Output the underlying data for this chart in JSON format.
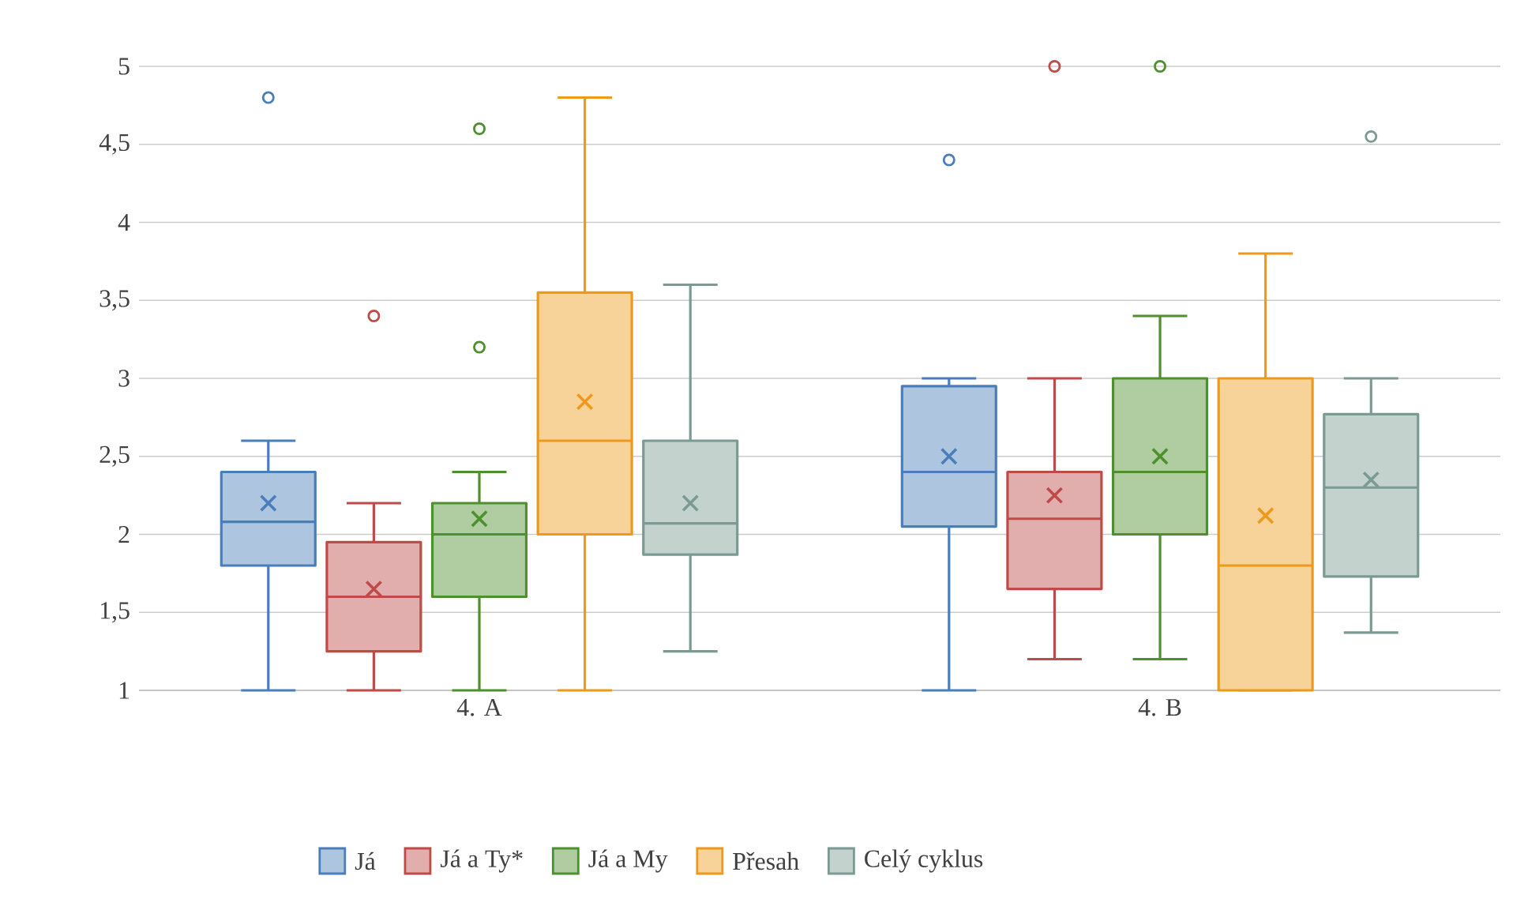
{
  "chart_data": {
    "type": "box",
    "categories": [
      "4. A",
      "4. B"
    ],
    "ylim": [
      1,
      5
    ],
    "yticks": [
      1,
      {
        "value": 1.5,
        "label": "1,5"
      },
      2,
      {
        "value": 2.5,
        "label": "2,5"
      },
      3,
      {
        "value": 3.5,
        "label": "3,5"
      },
      4,
      {
        "value": 4.5,
        "label": "4,5"
      },
      5
    ],
    "grid": "y",
    "legend": "bottom",
    "series": [
      {
        "name": "Já",
        "color": "#4a7ebb",
        "boxes": [
          {
            "low": 1,
            "q1": 1.8,
            "median": 2.08,
            "q3": 2.4,
            "high": 2.6,
            "mean": 2.2,
            "outliers": [
              4.8
            ]
          },
          {
            "low": 1,
            "q1": 2.05,
            "median": 2.4,
            "q3": 2.95,
            "high": 3.0,
            "mean": 2.5,
            "outliers": [
              4.4
            ]
          }
        ]
      },
      {
        "name": "Já a Ty*",
        "color": "#be4b48",
        "boxes": [
          {
            "low": 1,
            "q1": 1.25,
            "median": 1.6,
            "q3": 1.95,
            "high": 2.2,
            "mean": 1.65,
            "outliers": [
              3.4
            ]
          },
          {
            "low": 1.2,
            "q1": 1.65,
            "median": 2.1,
            "q3": 2.4,
            "high": 3.0,
            "mean": 2.25,
            "outliers": [
              5
            ]
          }
        ]
      },
      {
        "name": "Já a My",
        "color": "#4e8f2e",
        "boxes": [
          {
            "low": 1,
            "q1": 1.6,
            "median": 2.0,
            "q3": 2.2,
            "high": 2.4,
            "mean": 2.1,
            "outliers": [
              4.6,
              3.2
            ]
          },
          {
            "low": 1.2,
            "q1": 2.0,
            "median": 2.4,
            "q3": 3.0,
            "high": 3.4,
            "mean": 2.5,
            "outliers": [
              5
            ]
          }
        ]
      },
      {
        "name": "Přesah",
        "color": "#ed9a1c",
        "boxes": [
          {
            "low": 1,
            "q1": 2.0,
            "median": 2.6,
            "q3": 3.55,
            "high": 4.8,
            "mean": 2.85
          },
          {
            "low": 1,
            "q1": 1.0,
            "median": 1.8,
            "q3": 3.0,
            "high": 3.8,
            "mean": 2.12
          }
        ]
      },
      {
        "name": "Celý cyklus",
        "color": "#7b9a92",
        "boxes": [
          {
            "low": 1.25,
            "q1": 1.87,
            "median": 2.07,
            "q3": 2.6,
            "high": 3.6,
            "mean": 2.2
          },
          {
            "low": 1.37,
            "q1": 1.73,
            "median": 2.3,
            "q3": 2.77,
            "high": 3.0,
            "mean": 2.35,
            "outliers": [
              4.55
            ]
          }
        ]
      }
    ]
  }
}
